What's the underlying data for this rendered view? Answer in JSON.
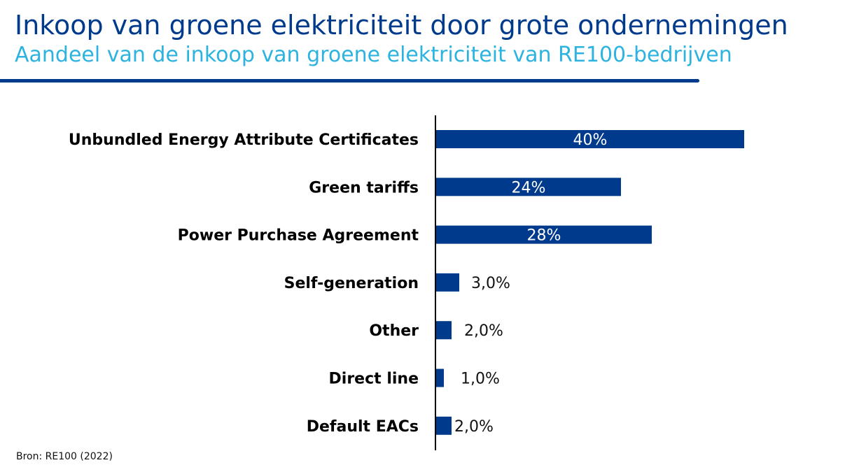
{
  "header": {
    "title": "Inkoop van groene elektriciteit door grote ondernemingen",
    "subtitle": "Aandeel van de inkoop van groene elektriciteit van RE100-bedrijven"
  },
  "footer": {
    "source": "Bron: RE100 (2022)"
  },
  "colors": {
    "title": "#003a8c",
    "subtitle": "#2cb3e0",
    "bar": "#003a8c",
    "label_inside": "#ffffff",
    "label_outside": "#111111"
  },
  "chart_data": {
    "type": "bar",
    "orientation": "horizontal",
    "categories": [
      "Unbundled Energy Attribute Certificates",
      "Green tariffs",
      "Power Purchase Agreement",
      "Self-generation",
      "Other",
      "Direct line",
      "Default EACs"
    ],
    "values": [
      40,
      24,
      28,
      3,
      2,
      1,
      2
    ],
    "data_labels": [
      "40%",
      "24%",
      "28%",
      "3,0%",
      "2,0%",
      "1,0%",
      "2,0%"
    ],
    "unit": "%",
    "xlim": [
      0,
      50
    ],
    "grid": false,
    "legend": "none"
  }
}
